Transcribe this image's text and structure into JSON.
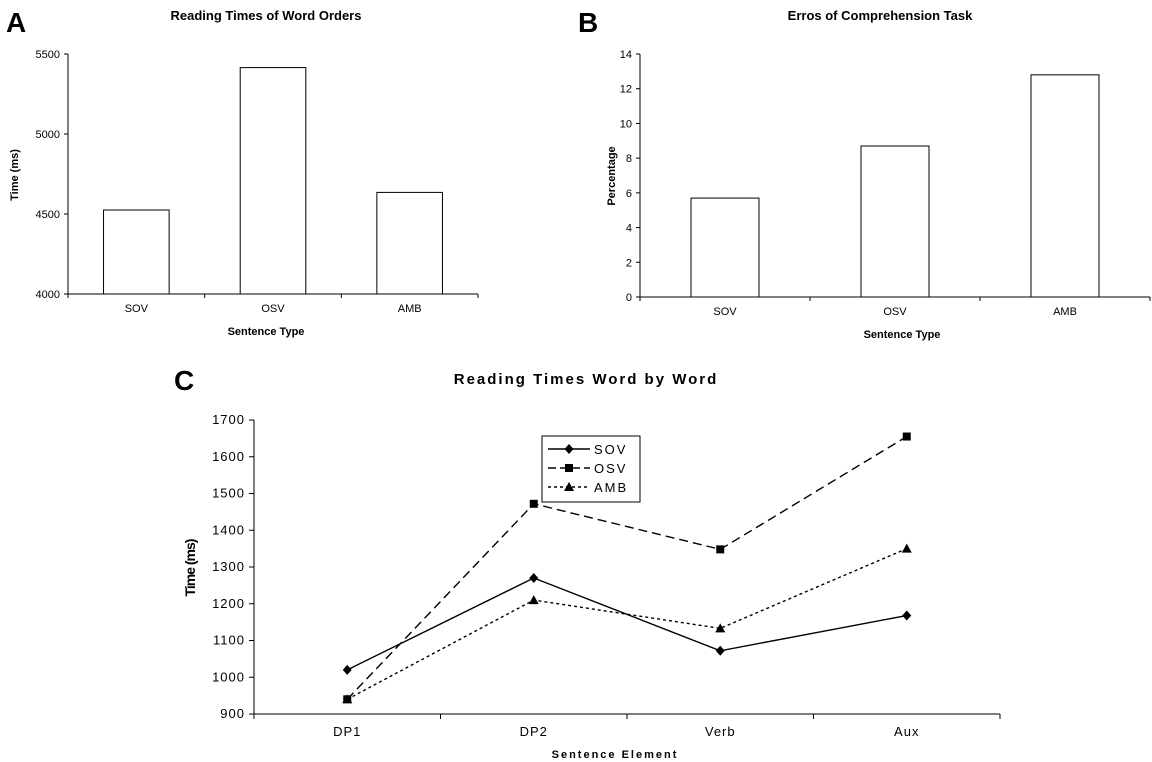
{
  "panels": {
    "a": {
      "letter": "A",
      "chart_data": {
        "type": "bar",
        "title": "Reading Times of Word Orders",
        "xlabel": "Sentence Type",
        "ylabel": "Time (ms)",
        "categories": [
          "SOV",
          "OSV",
          "AMB"
        ],
        "values": [
          4525,
          5415,
          4635
        ],
        "ylim": [
          4000,
          5500
        ],
        "yticks": [
          4000,
          4500,
          5000,
          5500
        ],
        "grid": false,
        "bar_fill": "#ffffff",
        "bar_stroke": "#000000"
      }
    },
    "b": {
      "letter": "B",
      "chart_data": {
        "type": "bar",
        "title": "Erros of Comprehension Task",
        "xlabel": "Sentence Type",
        "ylabel": "Percentage",
        "categories": [
          "SOV",
          "OSV",
          "AMB"
        ],
        "values": [
          5.7,
          8.7,
          12.8
        ],
        "ylim": [
          0,
          14
        ],
        "yticks": [
          0,
          2,
          4,
          6,
          8,
          10,
          12,
          14
        ],
        "grid": false,
        "bar_fill": "#ffffff",
        "bar_stroke": "#000000"
      }
    },
    "c": {
      "letter": "C",
      "chart_data": {
        "type": "line",
        "title": "Reading Times Word by Word",
        "xlabel": "Sentence Element",
        "ylabel": "Time (ms)",
        "categories": [
          "DP1",
          "DP2",
          "Verb",
          "Aux"
        ],
        "ylim": [
          900,
          1700
        ],
        "yticks": [
          900,
          1000,
          1100,
          1200,
          1300,
          1400,
          1500,
          1600,
          1700
        ],
        "grid": false,
        "legend_position": "top-center",
        "series": [
          {
            "name": "SOV",
            "values": [
              1020,
              1270,
              1072,
              1168
            ],
            "marker": "diamond",
            "dash": "solid"
          },
          {
            "name": "OSV",
            "values": [
              940,
              1472,
              1348,
              1655
            ],
            "marker": "square",
            "dash": "dashed"
          },
          {
            "name": "AMB",
            "values": [
              940,
              1210,
              1133,
              1350
            ],
            "marker": "triangle",
            "dash": "dotted"
          }
        ]
      }
    }
  }
}
